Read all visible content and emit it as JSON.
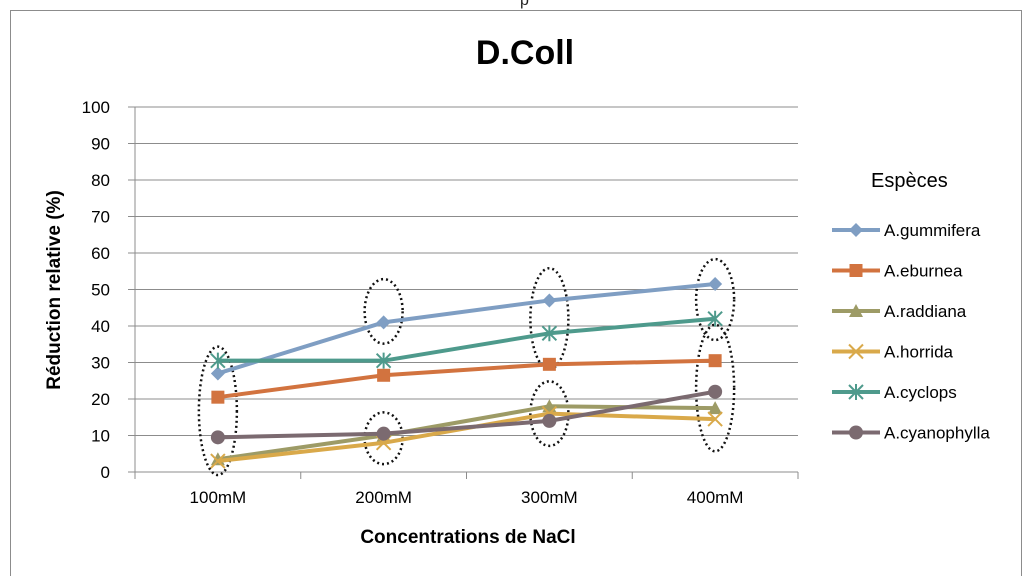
{
  "chart_data": {
    "type": "line",
    "title": "D.Coll",
    "xlabel": "Concentrations de NaCl",
    "ylabel": "Réduction relative (%)",
    "categories": [
      "100mM",
      "200mM",
      "300mM",
      "400mM"
    ],
    "ylim": [
      0,
      100
    ],
    "yticks": [
      "0",
      "10",
      "20",
      "30",
      "40",
      "50",
      "60",
      "70",
      "80",
      "90",
      "100"
    ],
    "grid": true,
    "legend_title": "Espèces",
    "legend_position": "right",
    "series": [
      {
        "name": "A.gummifera",
        "values": [
          27,
          41,
          47,
          51.5
        ],
        "color": "#7f9ec3",
        "marker": "diamond"
      },
      {
        "name": " A.eburnea",
        "values": [
          20.5,
          26.5,
          29.5,
          30.5
        ],
        "color": "#d2733f",
        "marker": "square"
      },
      {
        "name": "A.raddiana",
        "values": [
          3.5,
          10,
          18,
          17.5
        ],
        "color": "#9d9b66",
        "marker": "triangle"
      },
      {
        "name": "A.horrida",
        "values": [
          3,
          8,
          16,
          14.5
        ],
        "color": "#d9a94a",
        "marker": "x"
      },
      {
        "name": "A.cyclops",
        "values": [
          30.5,
          30.5,
          38,
          42
        ],
        "color": "#4e9a8c",
        "marker": "star"
      },
      {
        "name": "A.cyanophylla",
        "values": [
          9.5,
          10.5,
          14,
          22
        ],
        "color": "#7b6a70",
        "marker": "circle"
      }
    ]
  }
}
